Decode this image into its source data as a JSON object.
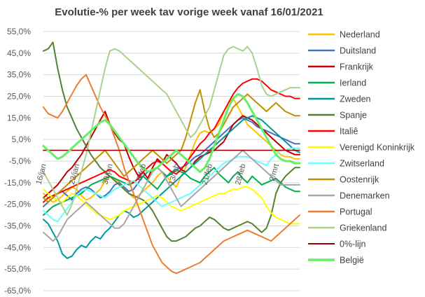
{
  "chart_data": {
    "type": "line",
    "title": "Evolutie-% per week tav vorige week vanaf 16/01/2021",
    "ylim": [
      -65,
      55
    ],
    "yticks": [
      "55,0%",
      "45,0%",
      "35,0%",
      "25,0%",
      "15,0%",
      "5,0%",
      "-5,0%",
      "-15,0%",
      "-25,0%",
      "-35,0%",
      "-45,0%",
      "-55,0%",
      "-65,0%"
    ],
    "x_count": 55,
    "xtick_labels": [
      {
        "index": 0,
        "label": "16/jan"
      },
      {
        "index": 7,
        "label": "23/jan"
      },
      {
        "index": 14,
        "label": "30/jan"
      },
      {
        "index": 21,
        "label": "6/feb"
      },
      {
        "index": 28,
        "label": "13/feb"
      },
      {
        "index": 35,
        "label": "21/feb"
      },
      {
        "index": 42,
        "label": "28/feb"
      },
      {
        "index": 49,
        "label": "2/mrt"
      }
    ],
    "grid": true,
    "legend_position": "right",
    "series": [
      {
        "name": "Nederland",
        "color": "#FFC000",
        "stroke_width": 2,
        "values": [
          -20,
          -22,
          -24,
          -23,
          -21,
          -19,
          -17,
          -18,
          -21,
          -23,
          -22,
          -20,
          -18,
          -14,
          -12,
          -13,
          -15,
          -18,
          -20,
          -22,
          -21,
          -19,
          -17,
          -15,
          -12,
          -10,
          -12,
          -15,
          -17,
          -12,
          -8,
          -2,
          4,
          8,
          9,
          8,
          10,
          12,
          18,
          22,
          24,
          20,
          16,
          12,
          10,
          8,
          6,
          4,
          2,
          0,
          -2,
          -3,
          -3,
          -4,
          -4
        ]
      },
      {
        "name": "Duitsland",
        "color": "#4472C4",
        "stroke_width": 2,
        "values": [
          -26,
          -24,
          -22,
          -20,
          -19,
          -21,
          -23,
          -20,
          -18,
          -17,
          -18,
          -20,
          -22,
          -21,
          -19,
          -16,
          -15,
          -17,
          -19,
          -18,
          -15,
          -12,
          -10,
          -9,
          -8,
          -10,
          -12,
          -11,
          -9,
          -8,
          -7,
          -5,
          -3,
          -2,
          0,
          2,
          4,
          6,
          8,
          10,
          12,
          14,
          15,
          14,
          13,
          11,
          10,
          9,
          8,
          7,
          6,
          5,
          4,
          3,
          3
        ]
      },
      {
        "name": "Frankrijk",
        "color": "#C00000",
        "stroke_width": 2,
        "values": [
          -22,
          -20,
          -18,
          -16,
          -13,
          -10,
          -8,
          -5,
          -2,
          2,
          6,
          10,
          14,
          18,
          12,
          8,
          5,
          3,
          -3,
          -8,
          -12,
          -10,
          -13,
          -8,
          -4,
          -6,
          -2,
          -4,
          -6,
          -9,
          -10,
          -8,
          -5,
          -3,
          -2,
          -1,
          0,
          2,
          4,
          8,
          12,
          14,
          16,
          15,
          14,
          12,
          10,
          8,
          6,
          4,
          2,
          0,
          -1,
          -2,
          -2
        ]
      },
      {
        "name": "Ierland",
        "color": "#00B050",
        "stroke_width": 2,
        "values": [
          -30,
          -28,
          -26,
          -25,
          -24,
          -23,
          -22,
          -21,
          -20,
          -18,
          -16,
          -15,
          -14,
          -13,
          -12,
          -13,
          -14,
          -15,
          -16,
          -15,
          -13,
          -12,
          -14,
          -16,
          -18,
          -15,
          -12,
          -10,
          -9,
          -10,
          -11,
          -13,
          -14,
          -15,
          -12,
          -10,
          -8,
          -11,
          -13,
          -15,
          -12,
          -10,
          -13,
          -15,
          -12,
          -14,
          -16,
          -15,
          -14,
          -13,
          -15,
          -17,
          -18,
          -19,
          -19
        ]
      },
      {
        "name": "Zweden",
        "color": "#009999",
        "stroke_width": 2,
        "values": [
          -32,
          -34,
          -38,
          -42,
          -48,
          -50,
          -49,
          -46,
          -44,
          -45,
          -42,
          -40,
          -41,
          -38,
          -36,
          -33,
          -30,
          -28,
          -29,
          -31,
          -30,
          -28,
          -26,
          -24,
          -22,
          -20,
          -18,
          -16,
          -14,
          -12,
          -10,
          -8,
          -6,
          -4,
          -2,
          0,
          2,
          4,
          6,
          8,
          10,
          12,
          14,
          15,
          16,
          15,
          14,
          12,
          10,
          8,
          6,
          4,
          2,
          0,
          -1
        ]
      },
      {
        "name": "Spanje",
        "color": "#548235",
        "stroke_width": 2,
        "values": [
          46,
          47,
          50,
          38,
          28,
          20,
          15,
          10,
          6,
          2,
          -2,
          -5,
          -8,
          -10,
          -12,
          -14,
          -16,
          -18,
          -20,
          -21,
          -22,
          -23,
          -25,
          -28,
          -32,
          -36,
          -40,
          -42,
          -42,
          -41,
          -40,
          -38,
          -36,
          -35,
          -33,
          -31,
          -32,
          -34,
          -36,
          -37,
          -36,
          -35,
          -34,
          -33,
          -34,
          -36,
          -38,
          -36,
          -30,
          -20,
          -15,
          -12,
          -10,
          -8,
          -8
        ]
      },
      {
        "name": "Italiê",
        "color": "#FF0000",
        "stroke_width": 2,
        "values": [
          -24,
          -22,
          -21,
          -20,
          -19,
          -18,
          -17,
          -16,
          -15,
          -14,
          -13,
          -12,
          -11,
          -10,
          -9,
          -10,
          -12,
          -13,
          -14,
          -15,
          -13,
          -10,
          -8,
          -6,
          -5,
          -6,
          -8,
          -10,
          -11,
          -9,
          -6,
          -3,
          0,
          3,
          5,
          8,
          10,
          14,
          18,
          22,
          26,
          29,
          31,
          32,
          33,
          33,
          32,
          30,
          28,
          27,
          26,
          25,
          25,
          24,
          24
        ]
      },
      {
        "name": "Verenigd Koninkrijk",
        "color": "#FFFF00",
        "stroke_width": 2,
        "values": [
          -18,
          -20,
          -22,
          -23,
          -24,
          -22,
          -20,
          -21,
          -23,
          -25,
          -27,
          -29,
          -30,
          -31,
          -32,
          -31,
          -30,
          -28,
          -27,
          -26,
          -25,
          -24,
          -23,
          -22,
          -21,
          -22,
          -24,
          -26,
          -27,
          -28,
          -27,
          -26,
          -25,
          -24,
          -23,
          -22,
          -21,
          -20,
          -20,
          -19,
          -18,
          -18,
          -17,
          -17,
          -18,
          -20,
          -22,
          -26,
          -29,
          -31,
          -32,
          -33,
          -34,
          -34,
          -34
        ]
      },
      {
        "name": "Zwitserland",
        "color": "#66FFFF",
        "stroke_width": 2,
        "values": [
          -28,
          -30,
          -32,
          -33,
          -30,
          -27,
          -24,
          -21,
          -19,
          -18,
          -19,
          -20,
          -21,
          -22,
          -20,
          -18,
          -17,
          -16,
          -15,
          -14,
          -16,
          -18,
          -20,
          -22,
          -24,
          -26,
          -25,
          -24,
          -23,
          -22,
          -21,
          -20,
          -18,
          -16,
          -14,
          -12,
          -10,
          -8,
          -6,
          -5,
          -4,
          -3,
          -3,
          -3,
          -4,
          -5,
          -6,
          -7,
          -4,
          -2,
          0,
          0,
          1,
          1,
          1
        ]
      },
      {
        "name": "Oostenrijk",
        "color": "#BF9000",
        "stroke_width": 2,
        "values": [
          -22,
          -24,
          -22,
          -20,
          -18,
          -16,
          -14,
          -12,
          -10,
          -8,
          -6,
          -4,
          -2,
          0,
          -3,
          -6,
          -9,
          -12,
          -10,
          -8,
          -6,
          -4,
          -2,
          0,
          -2,
          -4,
          -6,
          -4,
          -2,
          0,
          6,
          14,
          22,
          28,
          18,
          10,
          6,
          8,
          12,
          16,
          20,
          22,
          24,
          26,
          24,
          22,
          20,
          18,
          20,
          22,
          20,
          18,
          17,
          16,
          16
        ]
      },
      {
        "name": "Denemarken",
        "color": "#A6A6A6",
        "stroke_width": 2,
        "values": [
          -38,
          -40,
          -42,
          -40,
          -36,
          -32,
          -30,
          -28,
          -26,
          -24,
          -26,
          -28,
          -30,
          -32,
          -34,
          -36,
          -36,
          -34,
          -30,
          -26,
          -22,
          -18,
          -14,
          -10,
          -8,
          -10,
          -14,
          -18,
          -22,
          -26,
          -24,
          -22,
          -20,
          -18,
          -16,
          -14,
          -12,
          -10,
          -8,
          -6,
          -4,
          -2,
          0,
          -2,
          -4,
          -6,
          -8,
          -10,
          -12,
          -14,
          -16,
          -16,
          -16,
          -16,
          -16
        ]
      },
      {
        "name": "Portugal",
        "color": "#ED7D31",
        "stroke_width": 2,
        "values": [
          20,
          17,
          16,
          15,
          18,
          22,
          26,
          30,
          33,
          35,
          30,
          25,
          20,
          16,
          12,
          6,
          0,
          -8,
          -14,
          -20,
          -26,
          -32,
          -38,
          -44,
          -48,
          -52,
          -54,
          -56,
          -57,
          -56,
          -55,
          -54,
          -53,
          -52,
          -50,
          -48,
          -46,
          -44,
          -42,
          -41,
          -40,
          -39,
          -38,
          -37,
          -38,
          -39,
          -40,
          -41,
          -42,
          -40,
          -38,
          -36,
          -34,
          -32,
          -30
        ]
      },
      {
        "name": "Griekenland",
        "color": "#A9D18E",
        "stroke_width": 2,
        "values": [
          -10,
          -14,
          -18,
          -22,
          -26,
          -30,
          -25,
          -18,
          -10,
          -2,
          8,
          18,
          28,
          38,
          46,
          47,
          46,
          44,
          42,
          40,
          38,
          36,
          34,
          32,
          30,
          28,
          26,
          22,
          18,
          14,
          10,
          6,
          8,
          12,
          16,
          20,
          28,
          36,
          44,
          47,
          48,
          47,
          46,
          48,
          45,
          38,
          30,
          26,
          25,
          26,
          27,
          28,
          29,
          29,
          29
        ]
      },
      {
        "name": "0%-lijn",
        "color": "#990000",
        "stroke_width": 1.6,
        "values": [
          0,
          0,
          0,
          0,
          0,
          0,
          0,
          0,
          0,
          0,
          0,
          0,
          0,
          0,
          0,
          0,
          0,
          0,
          0,
          0,
          0,
          0,
          0,
          0,
          0,
          0,
          0,
          0,
          0,
          0,
          0,
          0,
          0,
          0,
          0,
          0,
          0,
          0,
          0,
          0,
          0,
          0,
          0,
          0,
          0,
          0,
          0,
          0,
          0,
          0,
          0,
          0,
          0,
          0,
          0
        ]
      },
      {
        "name": "België",
        "color": "#66EE66",
        "stroke_width": 3,
        "values": [
          2,
          0,
          -2,
          -4,
          -3,
          -1,
          1,
          3,
          5,
          7,
          9,
          11,
          13,
          14,
          12,
          9,
          6,
          3,
          0,
          -3,
          -6,
          -8,
          -10,
          -9,
          -8,
          -6,
          -4,
          -2,
          0,
          -2,
          -4,
          -6,
          -8,
          -10,
          -8,
          -4,
          2,
          8,
          14,
          20,
          24,
          26,
          25,
          22,
          18,
          14,
          10,
          6,
          2,
          -2,
          -4,
          -5,
          -5,
          -6,
          -6
        ]
      }
    ]
  }
}
